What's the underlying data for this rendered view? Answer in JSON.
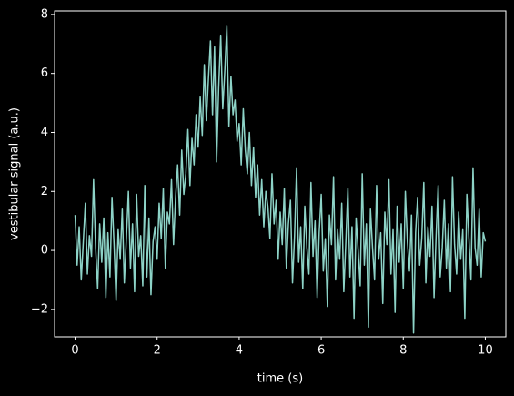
{
  "chart_data": {
    "type": "line",
    "xlabel": "time (s)",
    "ylabel": "vestibular signal (a.u.)",
    "xlim": [
      -0.5,
      10.5
    ],
    "ylim": [
      -2.93,
      8.12
    ],
    "xticks": [
      0,
      2,
      4,
      6,
      8,
      10
    ],
    "yticks": [
      {
        "value": -2,
        "label": "−2"
      },
      0,
      2,
      4,
      6,
      8
    ],
    "grid": false,
    "x": [
      0,
      0.05,
      0.1,
      0.15,
      0.2,
      0.25,
      0.3,
      0.35,
      0.4,
      0.45,
      0.5,
      0.55,
      0.6,
      0.65,
      0.7,
      0.75,
      0.8,
      0.85,
      0.9,
      0.95,
      1,
      1.05,
      1.1,
      1.15,
      1.2,
      1.25,
      1.3,
      1.35,
      1.4,
      1.45,
      1.5,
      1.55,
      1.6,
      1.65,
      1.7,
      1.75,
      1.8,
      1.85,
      1.9,
      1.95,
      2,
      2.05,
      2.1,
      2.15,
      2.2,
      2.25,
      2.3,
      2.35,
      2.4,
      2.45,
      2.5,
      2.55,
      2.6,
      2.65,
      2.7,
      2.75,
      2.8,
      2.85,
      2.9,
      2.95,
      3,
      3.05,
      3.1,
      3.15,
      3.2,
      3.25,
      3.3,
      3.35,
      3.4,
      3.45,
      3.5,
      3.55,
      3.6,
      3.65,
      3.7,
      3.75,
      3.8,
      3.85,
      3.9,
      3.95,
      4,
      4.05,
      4.1,
      4.15,
      4.2,
      4.25,
      4.3,
      4.35,
      4.4,
      4.45,
      4.5,
      4.55,
      4.6,
      4.65,
      4.7,
      4.75,
      4.8,
      4.85,
      4.9,
      4.95,
      5,
      5.05,
      5.1,
      5.15,
      5.2,
      5.25,
      5.3,
      5.35,
      5.4,
      5.45,
      5.5,
      5.55,
      5.6,
      5.65,
      5.7,
      5.75,
      5.8,
      5.85,
      5.9,
      5.95,
      6,
      6.05,
      6.1,
      6.15,
      6.2,
      6.25,
      6.3,
      6.35,
      6.4,
      6.45,
      6.5,
      6.55,
      6.6,
      6.65,
      6.7,
      6.75,
      6.8,
      6.85,
      6.9,
      6.95,
      7,
      7.05,
      7.1,
      7.15,
      7.2,
      7.25,
      7.3,
      7.35,
      7.4,
      7.45,
      7.5,
      7.55,
      7.6,
      7.65,
      7.7,
      7.75,
      7.8,
      7.85,
      7.9,
      7.95,
      8,
      8.05,
      8.1,
      8.15,
      8.2,
      8.25,
      8.3,
      8.35,
      8.4,
      8.45,
      8.5,
      8.55,
      8.6,
      8.65,
      8.7,
      8.75,
      8.8,
      8.85,
      8.9,
      8.95,
      9,
      9.05,
      9.1,
      9.15,
      9.2,
      9.25,
      9.3,
      9.35,
      9.4,
      9.45,
      9.5,
      9.55,
      9.6,
      9.65,
      9.7,
      9.75,
      9.8,
      9.85,
      9.9,
      9.95,
      10
    ],
    "series": [
      {
        "color": "#8dd3c7",
        "values": [
          1.2,
          -0.5,
          0.8,
          -1.0,
          0.3,
          1.6,
          -0.8,
          0.5,
          -0.2,
          2.4,
          0.1,
          -1.3,
          0.9,
          -0.4,
          1.1,
          -1.6,
          0.6,
          -0.9,
          1.8,
          0.2,
          -1.7,
          0.7,
          -0.3,
          1.4,
          -1.1,
          0.4,
          2.0,
          -0.6,
          0.9,
          -1.4,
          1.9,
          -0.2,
          0.5,
          -1.2,
          2.2,
          -0.9,
          1.1,
          -1.5,
          0.3,
          0.8,
          -0.3,
          1.6,
          0.4,
          2.1,
          -0.6,
          1.3,
          0.9,
          2.4,
          0.2,
          1.8,
          2.9,
          1.2,
          3.4,
          1.9,
          2.6,
          4.1,
          2.2,
          3.8,
          2.9,
          4.6,
          3.5,
          5.2,
          3.9,
          6.3,
          4.4,
          5.8,
          7.1,
          4.6,
          6.9,
          3.0,
          5.5,
          7.3,
          4.8,
          6.1,
          7.6,
          4.2,
          5.9,
          4.6,
          5.1,
          3.7,
          4.3,
          2.9,
          4.8,
          3.4,
          2.6,
          4.0,
          2.2,
          3.5,
          1.8,
          2.9,
          1.2,
          2.4,
          0.8,
          2.0,
          1.5,
          0.4,
          2.6,
          0.9,
          1.7,
          -0.3,
          1.3,
          0.2,
          2.1,
          -0.6,
          0.9,
          1.7,
          -1.1,
          0.5,
          2.8,
          -0.4,
          0.8,
          -1.3,
          1.5,
          0.1,
          -0.8,
          2.3,
          -0.2,
          1.0,
          -1.6,
          0.6,
          1.9,
          -0.7,
          0.4,
          -1.9,
          1.2,
          0.2,
          2.5,
          -1.0,
          0.7,
          -0.3,
          1.6,
          -1.4,
          0.3,
          2.1,
          -0.9,
          0.8,
          -2.3,
          1.1,
          0.0,
          -1.2,
          2.6,
          -0.5,
          0.9,
          -2.6,
          1.4,
          0.1,
          -1.0,
          2.2,
          -0.3,
          0.6,
          -1.8,
          1.3,
          0.2,
          2.4,
          -0.8,
          0.7,
          -2.1,
          1.5,
          -0.4,
          0.9,
          -1.3,
          2.0,
          0.3,
          -0.7,
          1.2,
          -2.8,
          0.6,
          1.8,
          -0.5,
          0.4,
          2.3,
          -1.1,
          0.8,
          -0.2,
          1.5,
          -1.6,
          0.5,
          2.2,
          -0.9,
          0.1,
          1.7,
          -0.6,
          0.9,
          -1.4,
          2.5,
          0.2,
          -0.8,
          1.3,
          -0.3,
          0.7,
          -2.3,
          1.9,
          0.4,
          -1.0,
          2.8,
          0.1,
          -0.5,
          1.4,
          -0.9,
          0.6,
          0.3
        ]
      }
    ]
  }
}
